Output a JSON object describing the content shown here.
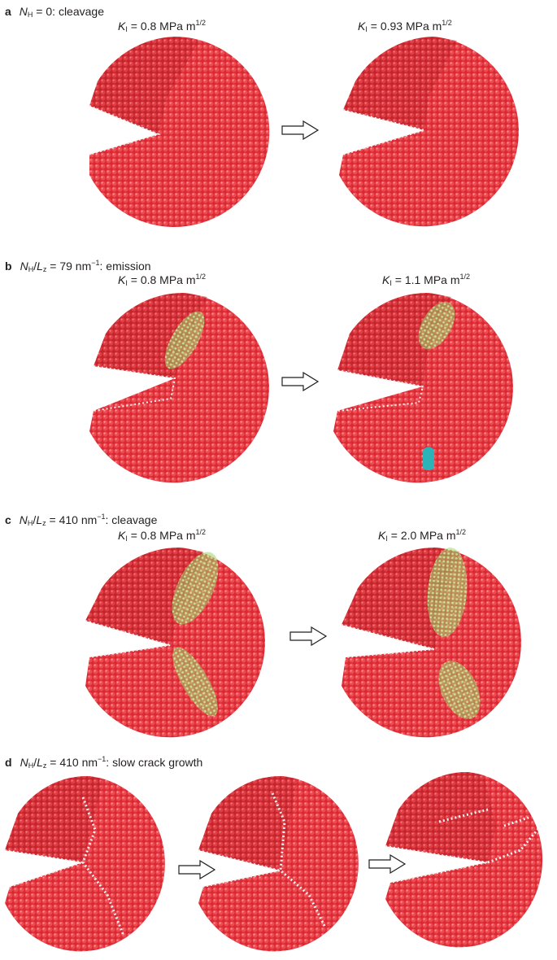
{
  "panels": {
    "a": {
      "letter": "a",
      "sym": "N",
      "sub": "H",
      "rest": " = 0: cleavage",
      "k_left": " = 0.8 MPa m",
      "k_right": " = 0.93 MPa m",
      "exp": "1/2"
    },
    "b": {
      "letter": "b",
      "sym": "N",
      "sub": "H",
      "mid": "/",
      "sym2": "L",
      "sub2": "z",
      "rest": " = 79 nm",
      "sup": "−1",
      "tail": ": emission",
      "k_left": " = 0.8 MPa m",
      "k_right": " = 1.1 MPa m",
      "exp": "1/2"
    },
    "c": {
      "letter": "c",
      "sym": "N",
      "sub": "H",
      "mid": "/",
      "sym2": "L",
      "sub2": "z",
      "rest": " = 410 nm",
      "sup": "−1",
      "tail": ": cleavage",
      "k_left": " = 0.8 MPa m",
      "k_right": " = 2.0 MPa m",
      "exp": "1/2"
    },
    "d": {
      "letter": "d",
      "sym": "N",
      "sub": "H",
      "mid": "/",
      "sym2": "L",
      "sub2": "z",
      "rest": " = 410 nm",
      "sup": "−1",
      "tail": ": slow crack growth"
    }
  },
  "k_symbol": "K",
  "k_sub": "I",
  "colors": {
    "atom_red": "#e4313a",
    "atom_dark": "#8f1a1f",
    "hydrogen": "#f2f2f2",
    "dislocation_green": "#7cc24a",
    "cyan": "#2bb3b8",
    "arrow": "#ffffff"
  },
  "icons": [
    "arrow-right-icon"
  ]
}
